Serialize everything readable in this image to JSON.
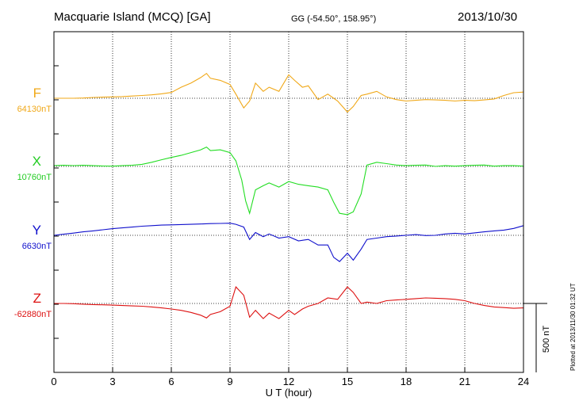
{
  "header": {
    "title": "Macquarie Island (MCQ)  [GA]",
    "coords": "GG (-54.50°, 158.95°)",
    "date": "2013/10/30"
  },
  "footnote": "Plotted at 2013/11/30 01:32 UT",
  "scale_bar_label": "500 nT",
  "colors": {
    "F": "#f0a818",
    "X": "#22dd22",
    "Y": "#1010cc",
    "Z": "#dd1111"
  },
  "chart_data": {
    "type": "line",
    "title": "Macquarie Island (MCQ)  [GA]",
    "xlabel": "U T (hour)",
    "ylabel": "",
    "xlim": [
      0,
      24
    ],
    "x_ticks": [
      0,
      3,
      6,
      9,
      12,
      15,
      18,
      21,
      24
    ],
    "grid": true,
    "scale_bar_nT": 500,
    "series": [
      {
        "name": "F",
        "baseline_label": "64130nT",
        "baseline": 64130,
        "x": [
          0,
          0.5,
          1,
          1.5,
          2,
          2.5,
          3,
          3.5,
          4,
          4.5,
          5,
          5.5,
          6,
          6.5,
          7,
          7.5,
          7.8,
          8,
          8.5,
          9,
          9.3,
          9.7,
          10,
          10.3,
          10.7,
          11,
          11.5,
          12,
          12.3,
          12.7,
          13,
          13.5,
          14,
          14.5,
          15,
          15.3,
          15.7,
          16,
          16.5,
          17,
          17.5,
          18,
          18.5,
          19,
          19.5,
          20,
          20.5,
          21,
          21.5,
          22,
          22.5,
          23,
          23.5,
          24
        ],
        "y": [
          64130,
          64130,
          64130,
          64132,
          64136,
          64138,
          64140,
          64142,
          64146,
          64150,
          64155,
          64162,
          64172,
          64210,
          64240,
          64280,
          64310,
          64275,
          64260,
          64230,
          64160,
          64060,
          64110,
          64240,
          64180,
          64210,
          64180,
          64300,
          64260,
          64210,
          64220,
          64120,
          64160,
          64110,
          64030,
          64070,
          64150,
          64160,
          64180,
          64140,
          64120,
          64110,
          64115,
          64120,
          64118,
          64115,
          64110,
          64115,
          64112,
          64118,
          64125,
          64150,
          64170,
          64175
        ]
      },
      {
        "name": "X",
        "baseline_label": "10760nT",
        "baseline": 10760,
        "x": [
          0,
          0.5,
          1,
          1.5,
          2,
          2.5,
          3,
          3.5,
          4,
          4.5,
          5,
          5.5,
          6,
          6.5,
          7,
          7.5,
          7.8,
          8,
          8.5,
          9,
          9.3,
          9.6,
          9.8,
          10,
          10.3,
          10.7,
          11,
          11.5,
          12,
          12.5,
          13,
          13.5,
          14,
          14.3,
          14.6,
          15,
          15.3,
          15.7,
          16,
          16.5,
          17,
          17.5,
          18,
          18.5,
          19,
          19.5,
          20,
          20.5,
          21,
          21.5,
          22,
          22.5,
          23,
          23.5,
          24
        ],
        "y": [
          10765,
          10768,
          10766,
          10768,
          10765,
          10763,
          10762,
          10765,
          10768,
          10775,
          10790,
          10808,
          10825,
          10840,
          10860,
          10880,
          10900,
          10875,
          10880,
          10860,
          10800,
          10660,
          10510,
          10420,
          10590,
          10620,
          10640,
          10610,
          10650,
          10630,
          10620,
          10610,
          10590,
          10500,
          10420,
          10410,
          10430,
          10560,
          10770,
          10790,
          10780,
          10770,
          10765,
          10768,
          10770,
          10760,
          10765,
          10762,
          10765,
          10768,
          10770,
          10762,
          10765,
          10765,
          10762
        ]
      },
      {
        "name": "Y",
        "baseline_label": "6630nT",
        "baseline": 6630,
        "x": [
          0,
          0.5,
          1,
          1.5,
          2,
          2.5,
          3,
          3.5,
          4,
          4.5,
          5,
          5.5,
          6,
          6.5,
          7,
          7.5,
          8,
          8.5,
          9,
          9.3,
          9.7,
          10,
          10.3,
          10.7,
          11,
          11.5,
          12,
          12.5,
          13,
          13.5,
          14,
          14.3,
          14.6,
          15,
          15.3,
          15.7,
          16,
          16.5,
          17,
          17.5,
          18,
          18.5,
          19,
          19.5,
          20,
          20.5,
          21,
          21.5,
          22,
          22.5,
          23,
          23.5,
          24
        ],
        "y": [
          6630,
          6638,
          6646,
          6655,
          6662,
          6670,
          6678,
          6684,
          6690,
          6696,
          6700,
          6704,
          6706,
          6708,
          6710,
          6712,
          6715,
          6716,
          6718,
          6710,
          6690,
          6600,
          6650,
          6620,
          6640,
          6610,
          6620,
          6590,
          6600,
          6560,
          6560,
          6470,
          6440,
          6500,
          6450,
          6530,
          6600,
          6610,
          6620,
          6625,
          6630,
          6635,
          6628,
          6630,
          6640,
          6645,
          6640,
          6648,
          6655,
          6662,
          6668,
          6680,
          6700
        ]
      },
      {
        "name": "Z",
        "baseline_label": "-62880nT",
        "baseline": -62880,
        "x": [
          0,
          0.5,
          1,
          1.5,
          2,
          2.5,
          3,
          3.5,
          4,
          4.5,
          5,
          5.5,
          6,
          6.5,
          7,
          7.5,
          7.8,
          8,
          8.5,
          9,
          9.3,
          9.7,
          10,
          10.3,
          10.7,
          11,
          11.5,
          12,
          12.3,
          12.7,
          13,
          13.5,
          14,
          14.5,
          15,
          15.3,
          15.7,
          16,
          16.5,
          17,
          17.5,
          18,
          18.5,
          19,
          19.5,
          20,
          20.5,
          21,
          21.5,
          22,
          22.5,
          23,
          23.5,
          24
        ],
        "y": [
          -62880,
          -62880,
          -62882,
          -62885,
          -62888,
          -62890,
          -62892,
          -62895,
          -62898,
          -62900,
          -62905,
          -62912,
          -62920,
          -62930,
          -62945,
          -62965,
          -62985,
          -62960,
          -62940,
          -62900,
          -62760,
          -62820,
          -62980,
          -62930,
          -62990,
          -62950,
          -62990,
          -62930,
          -62960,
          -62920,
          -62900,
          -62880,
          -62840,
          -62850,
          -62760,
          -62800,
          -62880,
          -62870,
          -62880,
          -62860,
          -62855,
          -62850,
          -62845,
          -62840,
          -62842,
          -62845,
          -62850,
          -62860,
          -62880,
          -62895,
          -62905,
          -62910,
          -62915,
          -62912
        ]
      }
    ]
  }
}
